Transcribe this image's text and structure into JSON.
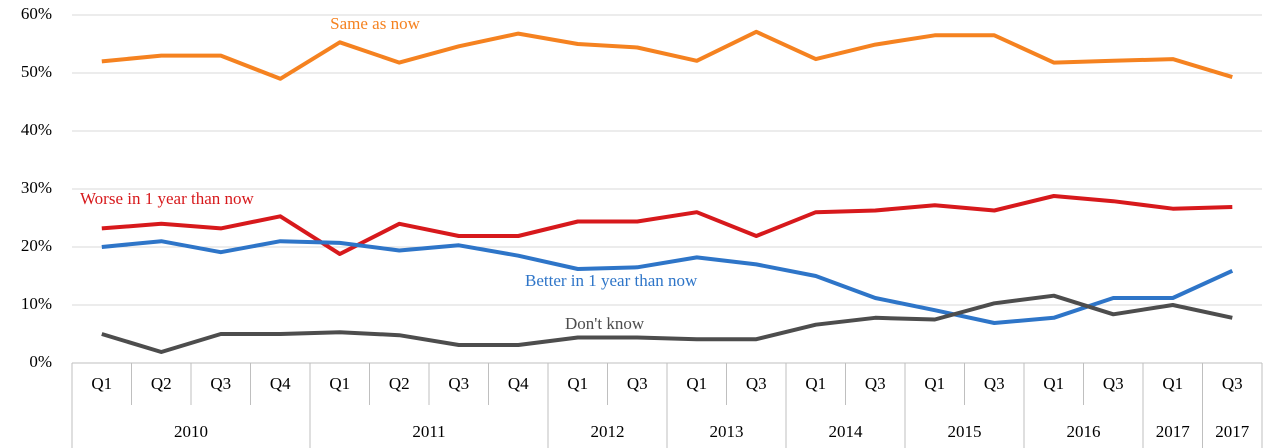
{
  "chart_data": {
    "type": "line",
    "categories": [
      "Q1",
      "Q2",
      "Q3",
      "Q4",
      "Q1",
      "Q2",
      "Q3",
      "Q4",
      "Q1",
      "Q3",
      "Q1",
      "Q3",
      "Q1",
      "Q3",
      "Q1",
      "Q3",
      "Q1",
      "Q3",
      "Q1",
      "Q3"
    ],
    "groups": [
      {
        "label": "2010",
        "span": 4
      },
      {
        "label": "2011",
        "span": 4
      },
      {
        "label": "2012",
        "span": 2
      },
      {
        "label": "2013",
        "span": 2
      },
      {
        "label": "2014",
        "span": 2
      },
      {
        "label": "2015",
        "span": 2
      },
      {
        "label": "2016",
        "span": 2
      },
      {
        "label": "2017",
        "span": 1
      },
      {
        "label": "2017",
        "span": 1
      }
    ],
    "series": [
      {
        "name": "Same as now",
        "color": "#f58220",
        "values": [
          52,
          53,
          53,
          49,
          55.3,
          51.8,
          54.6,
          56.8,
          55,
          54.4,
          52.1,
          57.1,
          52.4,
          54.9,
          56.5,
          56.5,
          51.8,
          52.1,
          52.4,
          49.3
        ]
      },
      {
        "name": "Worse in 1 year than now",
        "color": "#d7191c",
        "values": [
          23.2,
          24,
          23.2,
          25.3,
          18.8,
          24,
          21.9,
          21.9,
          24.4,
          24.4,
          26,
          21.9,
          26,
          26.3,
          27.2,
          26.3,
          28.8,
          27.9,
          26.6,
          26.9
        ]
      },
      {
        "name": "Better in 1 year than now",
        "color": "#2e75c8",
        "values": [
          20,
          21,
          19.1,
          21,
          20.7,
          19.4,
          20.3,
          18.5,
          16.2,
          16.5,
          18.2,
          17,
          15,
          11.2,
          9.1,
          6.9,
          7.8,
          11.2,
          11.2,
          15.9
        ]
      },
      {
        "name": "Don't know",
        "color": "#4d4d4d",
        "values": [
          5,
          1.9,
          5,
          5,
          5.3,
          4.8,
          3.1,
          3.1,
          4.4,
          4.4,
          4.1,
          4.1,
          6.6,
          7.8,
          7.5,
          10.3,
          11.6,
          8.4,
          10,
          7.8
        ]
      }
    ],
    "ylim": [
      0,
      60
    ],
    "yticks": [
      {
        "value": 0,
        "label": "0%"
      },
      {
        "value": 10,
        "label": "10%"
      },
      {
        "value": 20,
        "label": "20%"
      },
      {
        "value": 30,
        "label": "30%"
      },
      {
        "value": 40,
        "label": "40%"
      },
      {
        "value": 50,
        "label": "50%"
      },
      {
        "value": 60,
        "label": "60%"
      }
    ],
    "grid": true
  }
}
